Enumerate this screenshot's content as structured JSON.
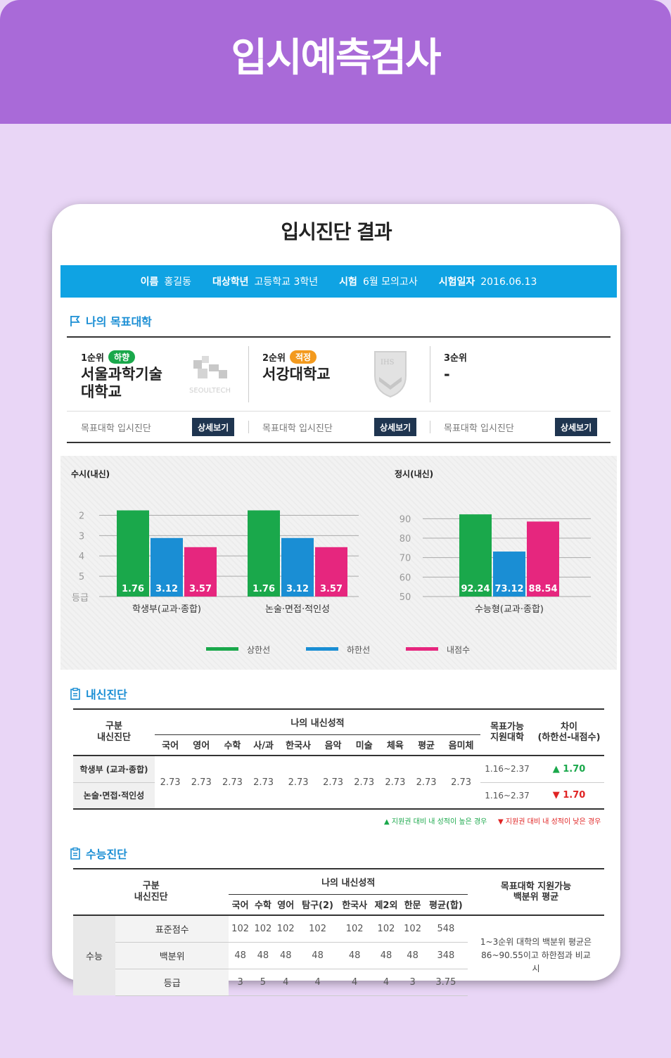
{
  "banner": {
    "title": "입시예측검사"
  },
  "card": {
    "title": "입시진단 결과"
  },
  "info": {
    "name_k": "이름",
    "name_v": "홍길동",
    "grade_k": "대상학년",
    "grade_v": "고등학교 3학년",
    "exam_k": "시험",
    "exam_v": "6월 모의고사",
    "date_k": "시험일자",
    "date_v": "2016.06.13"
  },
  "targets": {
    "heading": "나의 목표대학",
    "items": [
      {
        "rank": "1순위",
        "badge": "하향",
        "badge_color": "#1aa84b",
        "name": "서울과학기술 대학교",
        "logo_text": "SEOULTECH"
      },
      {
        "rank": "2순위",
        "badge": "적정",
        "badge_color": "#f39a1e",
        "name": "서강대학교",
        "logo_text": "IHS"
      },
      {
        "rank": "3순위",
        "badge": "",
        "badge_color": "",
        "name": "-",
        "logo_text": ""
      }
    ],
    "footer_label": "목표대학 입시진단",
    "detail_button": "상세보기"
  },
  "chart_data": [
    {
      "type": "bar",
      "title": "수시(내신)",
      "categories": [
        "학생부(교과·종합)",
        "논술·면접·적인성"
      ],
      "ylabel": "등급",
      "yticks": [
        "2",
        "3",
        "4",
        "5"
      ],
      "ylim": [
        6,
        1.5
      ],
      "series": [
        {
          "name": "상한선",
          "color": "#1aa84b",
          "values": [
            1.76,
            1.76
          ]
        },
        {
          "name": "하한선",
          "color": "#1a8ed4",
          "values": [
            3.12,
            3.12
          ]
        },
        {
          "name": "내점수",
          "color": "#e6267e",
          "values": [
            3.57,
            3.57
          ]
        }
      ]
    },
    {
      "type": "bar",
      "title": "정시(내신)",
      "categories": [
        "수능형(교과·종합)"
      ],
      "yticks": [
        "90",
        "80",
        "70",
        "60",
        "50"
      ],
      "ylim": [
        50,
        97
      ],
      "series": [
        {
          "name": "상한선",
          "color": "#1aa84b",
          "values": [
            92.24
          ]
        },
        {
          "name": "하한선",
          "color": "#1a8ed4",
          "values": [
            73.12
          ]
        },
        {
          "name": "내점수",
          "color": "#e6267e",
          "values": [
            88.54
          ]
        }
      ]
    }
  ],
  "legend": [
    {
      "name": "상한선",
      "color": "#1aa84b"
    },
    {
      "name": "하한선",
      "color": "#1a8ed4"
    },
    {
      "name": "내점수",
      "color": "#e6267e"
    }
  ],
  "naesin": {
    "heading": "내신진단",
    "h_category": "구분",
    "h_sub": "내신진단",
    "h_my": "나의 내신성적",
    "subjects": [
      "국어",
      "영어",
      "수학",
      "사/과",
      "한국사",
      "음악",
      "미술",
      "체육",
      "평균",
      "음미체"
    ],
    "h_target": "목표가능 지원대학",
    "h_diff": "차이 (하한선-내점수)",
    "rows": [
      {
        "label": "학생부 (교과·종합)",
        "range": "1.16~2.37",
        "diff": "▲ 1.70",
        "diff_color": "#1aa84b"
      },
      {
        "label": "논술·면접·적인성",
        "range": "1.16~2.37",
        "diff": "▼ 1.70",
        "diff_color": "#e02424"
      }
    ],
    "scores": [
      "2.73",
      "2.73",
      "2.73",
      "2.73",
      "2.73",
      "2.73",
      "2.73",
      "2.73",
      "2.73",
      "2.73"
    ],
    "note_up": "▲ 지원권 대비 내 성적이 높은 경우",
    "note_down": "▼ 지원권 대비 내 성적이 낮은 경우"
  },
  "suneung": {
    "heading": "수능진단",
    "h_category": "구분",
    "h_sub": "내신진단",
    "h_my": "나의 내신성적",
    "subjects": [
      "국어",
      "수학",
      "영어",
      "탐구(2)",
      "한국사",
      "제2외",
      "한문",
      "평균(합)"
    ],
    "h_target": "목표대학 지원가능 백분위 평균",
    "group": "수능",
    "rows": [
      {
        "label": "표준점수",
        "values": [
          "102",
          "102",
          "102",
          "102",
          "102",
          "102",
          "102",
          "548"
        ]
      },
      {
        "label": "백분위",
        "values": [
          "48",
          "48",
          "48",
          "48",
          "48",
          "48",
          "48",
          "348"
        ]
      },
      {
        "label": "등급",
        "values": [
          "3",
          "5",
          "4",
          "4",
          "4",
          "4",
          "3",
          "3.75"
        ]
      }
    ],
    "target_note": "1~3순위 대학의 백분위 평균은 86~90.55이고 하한점과 비교시"
  }
}
